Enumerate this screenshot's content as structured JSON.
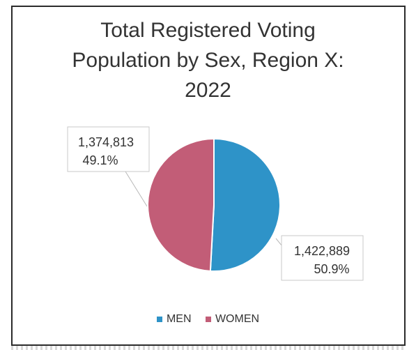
{
  "chart_data": {
    "type": "pie",
    "title_lines": [
      "Total Registered Voting",
      "Population by Sex, Region X:",
      "2022"
    ],
    "categories": [
      "MEN",
      "WOMEN"
    ],
    "values": [
      1422889,
      1374813
    ],
    "value_labels": [
      "1,422,889",
      "1,374,813"
    ],
    "percent_labels": [
      "50.9%",
      "49.1%"
    ],
    "colors": [
      "#2e93c8",
      "#c25d77"
    ],
    "legend_position": "bottom"
  }
}
